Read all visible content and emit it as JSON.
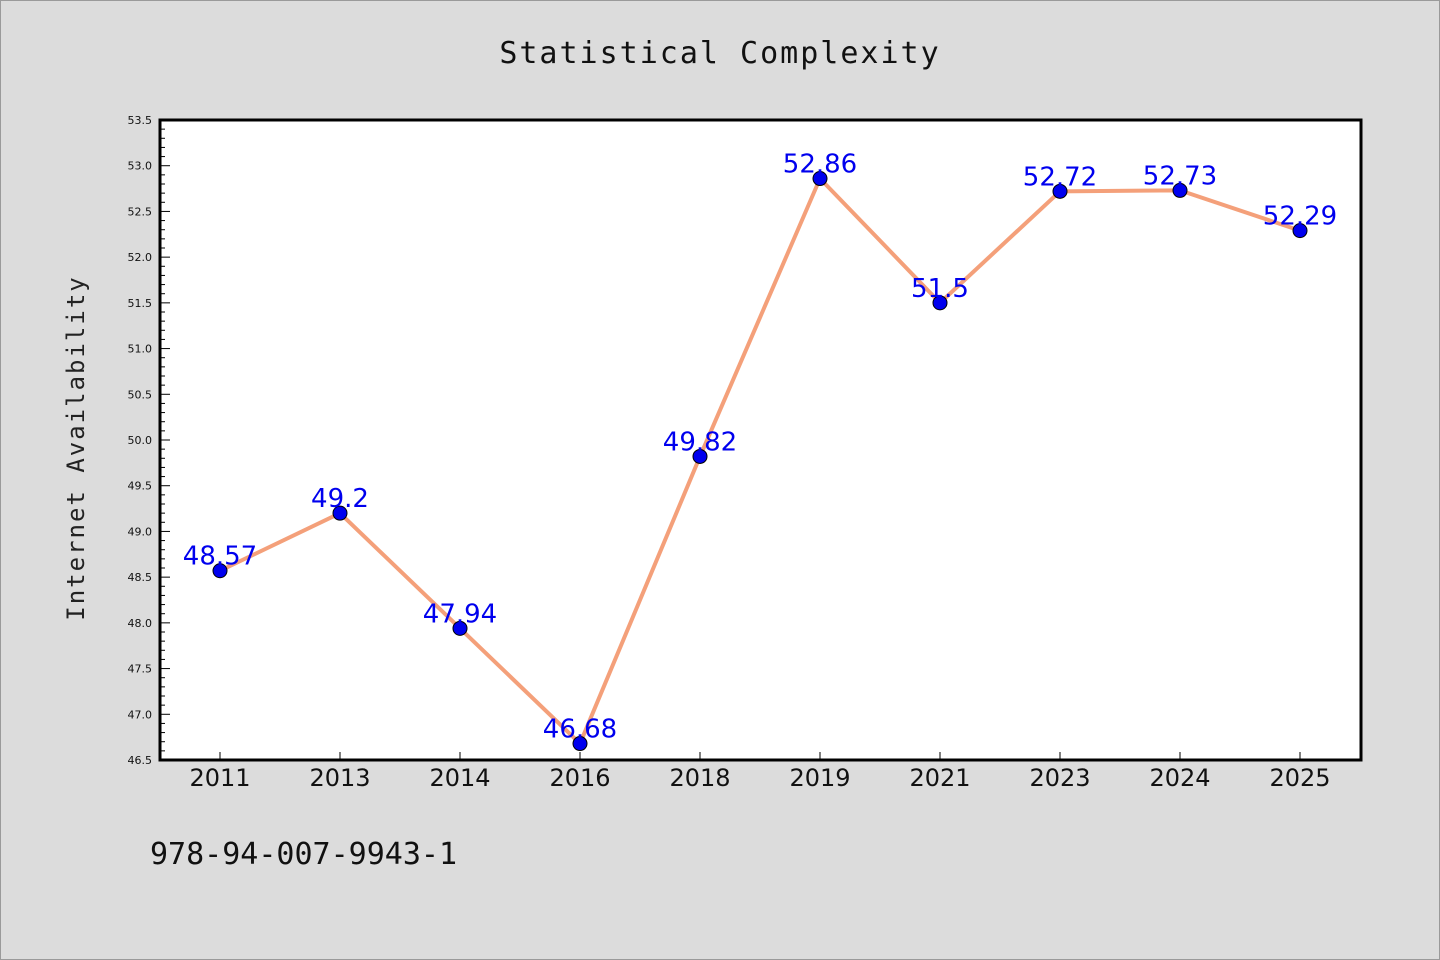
{
  "chart_data": {
    "type": "line",
    "title": "Statistical Complexity",
    "xlabel": "",
    "ylabel": "Internet Availability",
    "categories": [
      "2011",
      "2013",
      "2014",
      "2016",
      "2018",
      "2019",
      "2021",
      "2023",
      "2024",
      "2025"
    ],
    "values": [
      48.57,
      49.2,
      47.94,
      46.68,
      49.82,
      52.86,
      51.5,
      52.72,
      52.73,
      52.29
    ],
    "data_labels": [
      "48.57",
      "49.2",
      "47.94",
      "46.68",
      "49.82",
      "52.86",
      "51.5",
      "52.72",
      "52.73",
      "52.29"
    ],
    "ylim": [
      46.5,
      53.5
    ],
    "yticks": [
      "46.5",
      "47.0",
      "47.5",
      "48.0",
      "48.5",
      "49.0",
      "49.5",
      "50.0",
      "50.5",
      "51.0",
      "51.5",
      "52.0",
      "52.5",
      "53.0",
      "53.5"
    ],
    "grid": false,
    "legend": "none",
    "line_color": "#f4a07a",
    "marker_color": "#0000ee",
    "label_color": "#0000ee"
  },
  "footer": {
    "code": "978-94-007-9943-1"
  }
}
